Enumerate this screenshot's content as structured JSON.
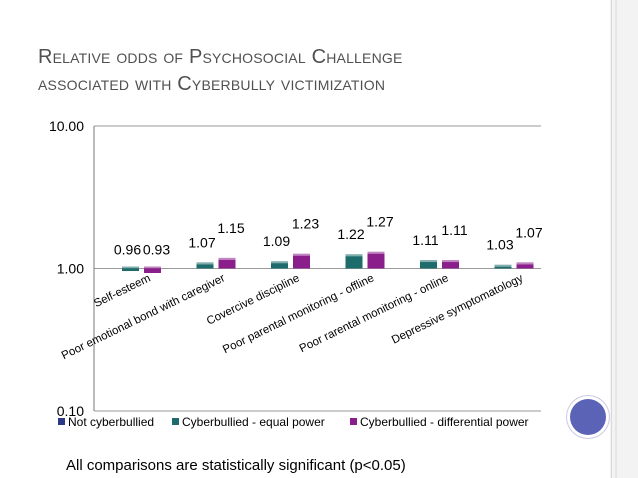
{
  "slide": {
    "title_line1": "Relative odds of Psychosocial Challenge",
    "title_line2": "associated with Cyberbully victimization",
    "footnote": "All comparisons are statistically significant (p<0.05)"
  },
  "chart_data": {
    "type": "bar",
    "scale": "log",
    "ylim": [
      0.1,
      10
    ],
    "yticks": [
      "10.00",
      "1.00",
      "0.10"
    ],
    "ytick_values": [
      10,
      1,
      0.1
    ],
    "gridlines": true,
    "legend_position": "bottom",
    "categories": [
      "Self-esteem",
      "Poor emotional bond with caregiver",
      "Covercive discipline",
      "Poor parental monitoring - offline",
      "Poor rarental monitoring - online",
      "Depressive symptomatology"
    ],
    "series": [
      {
        "name": "Not cyberbullied",
        "color": "#2e3a87",
        "values": [
          null,
          null,
          null,
          null,
          null,
          null
        ],
        "labels": [
          "",
          "",
          "",
          "",
          "",
          ""
        ]
      },
      {
        "name": "Cyberbullied - equal power",
        "color": "#1e6b6b",
        "values": [
          0.96,
          1.07,
          1.09,
          1.22,
          1.11,
          1.03
        ],
        "labels": [
          "0.96",
          "1.07",
          "1.09",
          "1.22",
          "1.11",
          "1.03"
        ]
      },
      {
        "name": "Cyberbullied - differential power",
        "color": "#8a1e8a",
        "values": [
          0.93,
          1.15,
          1.23,
          1.27,
          1.11,
          1.07
        ],
        "labels": [
          "0.93",
          "1.15",
          "1.23",
          "1.27",
          "1.11",
          "1.07"
        ]
      }
    ]
  }
}
